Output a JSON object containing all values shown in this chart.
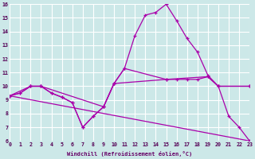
{
  "xlabel": "Windchill (Refroidissement éolien,°C)",
  "bg_color": "#cce8e8",
  "grid_color": "#ffffff",
  "line_color": "#aa00aa",
  "xlim": [
    0,
    23
  ],
  "ylim": [
    6,
    16
  ],
  "xticks": [
    0,
    1,
    2,
    3,
    4,
    5,
    6,
    7,
    8,
    9,
    10,
    11,
    12,
    13,
    14,
    15,
    16,
    17,
    18,
    19,
    20,
    21,
    22,
    23
  ],
  "yticks": [
    6,
    7,
    8,
    9,
    10,
    11,
    12,
    13,
    14,
    15,
    16
  ],
  "curve1_x": [
    0,
    1,
    2,
    3,
    4,
    5,
    6,
    7,
    8,
    9,
    10,
    11,
    12,
    13,
    14,
    15,
    16,
    17,
    18,
    19,
    20,
    21,
    22,
    23
  ],
  "curve1_y": [
    9.3,
    9.5,
    10.0,
    10.0,
    9.5,
    9.2,
    8.8,
    7.0,
    7.8,
    8.5,
    10.2,
    11.3,
    13.7,
    15.2,
    15.4,
    16.0,
    14.8,
    13.5,
    12.5,
    10.8,
    10.0,
    7.8,
    7.0,
    6.0
  ],
  "curve2_x": [
    0,
    1,
    2,
    3,
    4,
    5,
    6,
    7,
    8,
    9,
    10,
    11,
    15,
    16,
    17,
    18,
    19,
    20,
    23
  ],
  "curve2_y": [
    9.3,
    9.5,
    10.0,
    10.0,
    9.5,
    9.2,
    8.8,
    7.0,
    7.8,
    8.5,
    10.2,
    11.3,
    10.5,
    10.5,
    10.5,
    10.5,
    10.7,
    10.0,
    10.0
  ],
  "curve3_x": [
    0,
    2,
    3,
    9,
    10,
    15,
    19,
    20,
    23
  ],
  "curve3_y": [
    9.3,
    10.0,
    10.0,
    8.5,
    10.2,
    10.5,
    10.7,
    10.0,
    10.0
  ],
  "curve4_x": [
    0,
    23
  ],
  "curve4_y": [
    9.3,
    6.0
  ],
  "linewidth": 0.9,
  "marker": "+",
  "markersize": 3.5,
  "markeredgewidth": 0.9
}
